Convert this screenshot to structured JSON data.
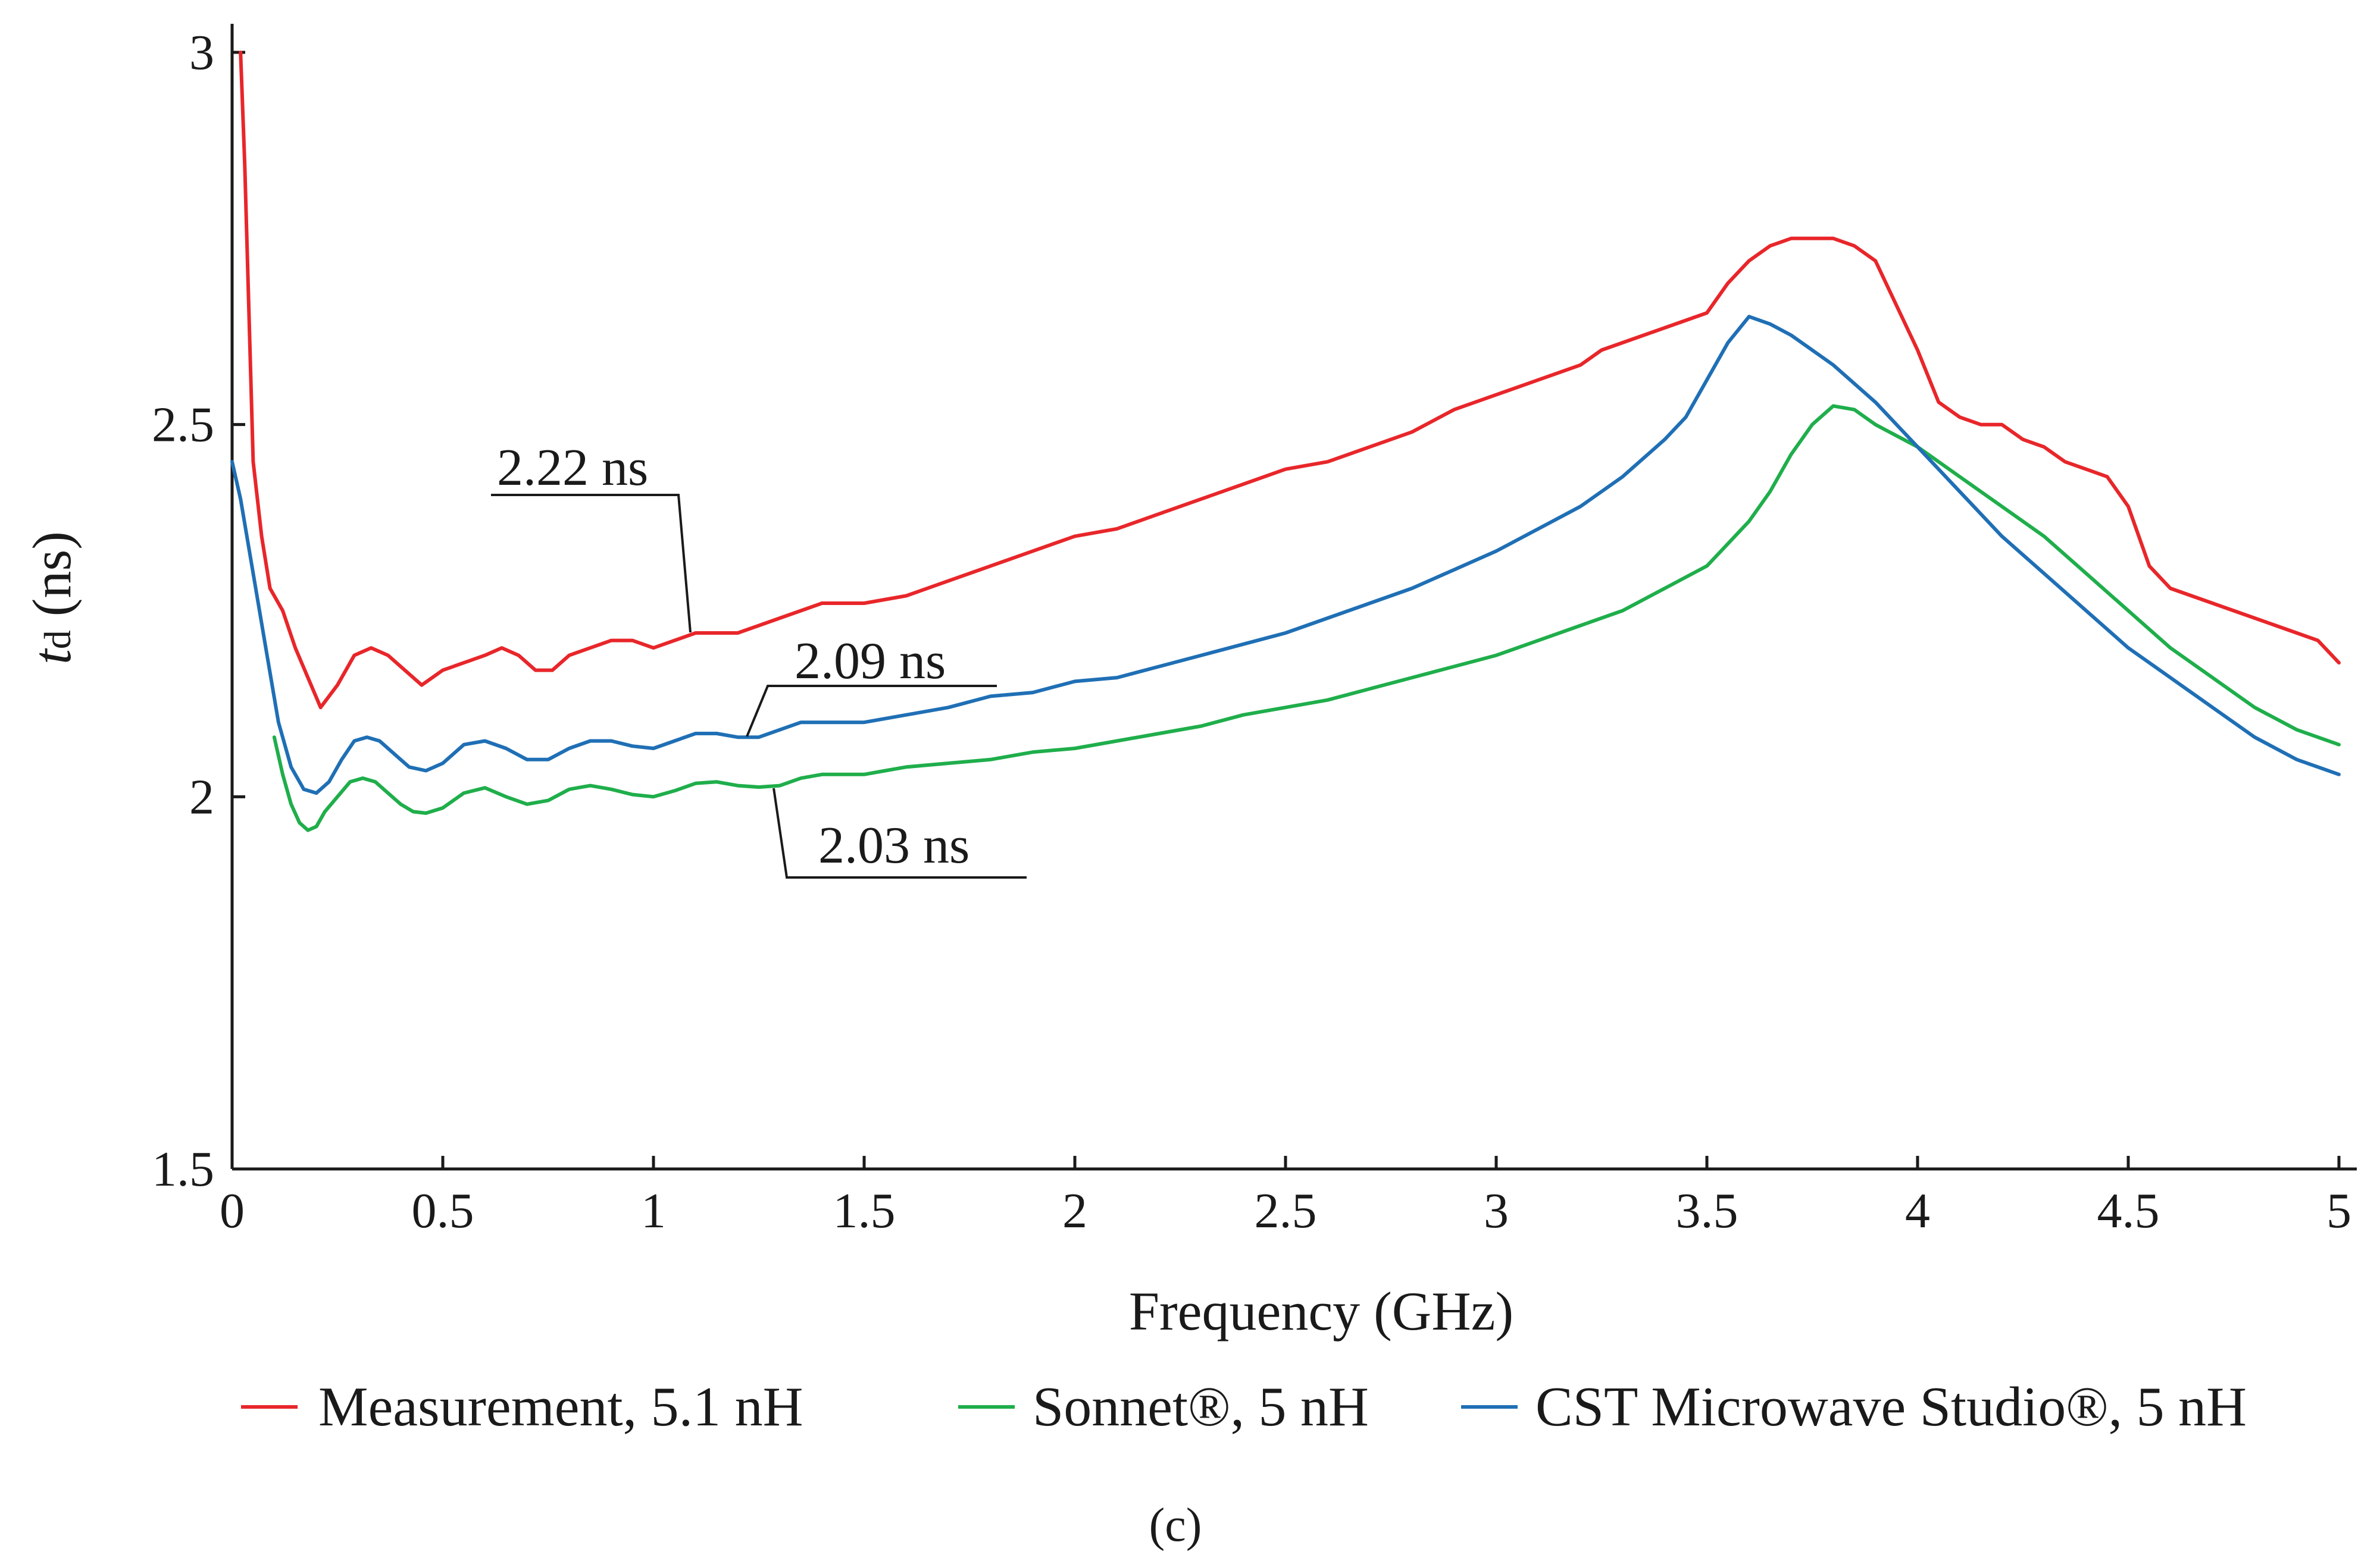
{
  "chart_data": {
    "type": "line",
    "xlabel": "Frequency  (GHz)",
    "ylabel_main": "t",
    "ylabel_sub": "d",
    "ylabel_unit": " (ns)",
    "xlim": [
      0,
      5
    ],
    "ylim": [
      1.5,
      3
    ],
    "xticks": [
      0,
      0.5,
      1,
      1.5,
      2,
      2.5,
      3,
      3.5,
      4,
      4.5,
      5
    ],
    "xtick_labels": [
      "0",
      "0.5",
      "1",
      "1.5",
      "2",
      "2.5",
      "3",
      "3.5",
      "4",
      "4.5",
      "5"
    ],
    "yticks": [
      1.5,
      2,
      2.5,
      3
    ],
    "ytick_labels": [
      "1.5",
      "2",
      "2.5",
      "3"
    ],
    "grid": false,
    "legend_position": "bottom",
    "caption": "(c)",
    "series": [
      {
        "name": "Measurement, 5.1 nH",
        "color": "#e8262a",
        "x": [
          0.02,
          0.03,
          0.05,
          0.07,
          0.09,
          0.12,
          0.15,
          0.18,
          0.21,
          0.25,
          0.29,
          0.33,
          0.37,
          0.41,
          0.45,
          0.5,
          0.55,
          0.6,
          0.64,
          0.68,
          0.72,
          0.76,
          0.8,
          0.85,
          0.9,
          0.95,
          1.0,
          1.05,
          1.1,
          1.2,
          1.3,
          1.4,
          1.5,
          1.6,
          1.7,
          1.8,
          1.9,
          2.0,
          2.1,
          2.2,
          2.3,
          2.4,
          2.5,
          2.6,
          2.7,
          2.8,
          2.9,
          3.0,
          3.1,
          3.2,
          3.25,
          3.3,
          3.35,
          3.4,
          3.45,
          3.5,
          3.55,
          3.6,
          3.65,
          3.7,
          3.75,
          3.8,
          3.85,
          3.9,
          3.95,
          4.0,
          4.05,
          4.1,
          4.15,
          4.2,
          4.25,
          4.3,
          4.35,
          4.4,
          4.45,
          4.5,
          4.55,
          4.6,
          4.65,
          4.7,
          4.75,
          4.8,
          4.85,
          4.9,
          4.95,
          5.0
        ],
        "y": [
          3.0,
          2.85,
          2.45,
          2.35,
          2.28,
          2.25,
          2.2,
          2.16,
          2.12,
          2.15,
          2.19,
          2.2,
          2.19,
          2.17,
          2.15,
          2.17,
          2.18,
          2.19,
          2.2,
          2.19,
          2.17,
          2.17,
          2.19,
          2.2,
          2.21,
          2.21,
          2.2,
          2.21,
          2.22,
          2.22,
          2.24,
          2.26,
          2.26,
          2.27,
          2.29,
          2.31,
          2.33,
          2.35,
          2.36,
          2.38,
          2.4,
          2.42,
          2.44,
          2.45,
          2.47,
          2.49,
          2.52,
          2.54,
          2.56,
          2.58,
          2.6,
          2.61,
          2.62,
          2.63,
          2.64,
          2.65,
          2.69,
          2.72,
          2.74,
          2.75,
          2.75,
          2.75,
          2.74,
          2.72,
          2.66,
          2.6,
          2.53,
          2.51,
          2.5,
          2.5,
          2.48,
          2.47,
          2.45,
          2.44,
          2.43,
          2.39,
          2.31,
          2.28,
          2.27,
          2.26,
          2.25,
          2.24,
          2.23,
          2.22,
          2.21,
          2.18
        ]
      },
      {
        "name": "Sonnet®, 5 nH",
        "color": "#1fae4b",
        "x": [
          0.1,
          0.12,
          0.14,
          0.16,
          0.18,
          0.2,
          0.22,
          0.25,
          0.28,
          0.31,
          0.34,
          0.37,
          0.4,
          0.43,
          0.46,
          0.5,
          0.55,
          0.6,
          0.65,
          0.7,
          0.75,
          0.8,
          0.85,
          0.9,
          0.95,
          1.0,
          1.05,
          1.1,
          1.15,
          1.2,
          1.25,
          1.3,
          1.35,
          1.4,
          1.45,
          1.5,
          1.55,
          1.6,
          1.7,
          1.8,
          1.9,
          2.0,
          2.1,
          2.2,
          2.3,
          2.4,
          2.5,
          2.6,
          2.7,
          2.8,
          2.9,
          3.0,
          3.1,
          3.2,
          3.3,
          3.4,
          3.5,
          3.55,
          3.6,
          3.65,
          3.7,
          3.75,
          3.8,
          3.85,
          3.9,
          4.0,
          4.1,
          4.2,
          4.3,
          4.4,
          4.5,
          4.6,
          4.7,
          4.8,
          4.9,
          5.0
        ],
        "y": [
          2.08,
          2.03,
          1.99,
          1.965,
          1.955,
          1.96,
          1.98,
          2.0,
          2.02,
          2.025,
          2.02,
          2.005,
          1.99,
          1.98,
          1.978,
          1.985,
          2.005,
          2.012,
          2.0,
          1.99,
          1.995,
          2.01,
          2.015,
          2.01,
          2.003,
          2.0,
          2.008,
          2.018,
          2.02,
          2.015,
          2.013,
          2.015,
          2.025,
          2.03,
          2.03,
          2.03,
          2.035,
          2.04,
          2.045,
          2.05,
          2.06,
          2.065,
          2.075,
          2.085,
          2.095,
          2.11,
          2.12,
          2.13,
          2.145,
          2.16,
          2.175,
          2.19,
          2.21,
          2.23,
          2.25,
          2.28,
          2.31,
          2.34,
          2.37,
          2.41,
          2.46,
          2.5,
          2.525,
          2.52,
          2.5,
          2.47,
          2.43,
          2.39,
          2.35,
          2.3,
          2.25,
          2.2,
          2.16,
          2.12,
          2.09,
          2.07
        ]
      },
      {
        "name": "CST Microwave Studio®, 5 nH",
        "color": "#1f6fb5",
        "x": [
          0.0,
          0.02,
          0.05,
          0.08,
          0.11,
          0.14,
          0.17,
          0.2,
          0.23,
          0.26,
          0.29,
          0.32,
          0.35,
          0.38,
          0.42,
          0.46,
          0.5,
          0.55,
          0.6,
          0.65,
          0.7,
          0.75,
          0.8,
          0.85,
          0.9,
          0.95,
          1.0,
          1.05,
          1.1,
          1.15,
          1.2,
          1.25,
          1.3,
          1.35,
          1.4,
          1.45,
          1.5,
          1.55,
          1.6,
          1.7,
          1.8,
          1.9,
          2.0,
          2.1,
          2.2,
          2.3,
          2.4,
          2.5,
          2.6,
          2.7,
          2.8,
          2.9,
          3.0,
          3.1,
          3.2,
          3.3,
          3.4,
          3.45,
          3.5,
          3.55,
          3.6,
          3.65,
          3.7,
          3.75,
          3.8,
          3.9,
          4.0,
          4.1,
          4.2,
          4.3,
          4.4,
          4.5,
          4.6,
          4.7,
          4.8,
          4.9,
          5.0
        ],
        "y": [
          2.45,
          2.4,
          2.3,
          2.2,
          2.1,
          2.04,
          2.01,
          2.005,
          2.02,
          2.05,
          2.075,
          2.08,
          2.075,
          2.06,
          2.04,
          2.035,
          2.045,
          2.07,
          2.075,
          2.065,
          2.05,
          2.05,
          2.065,
          2.075,
          2.075,
          2.068,
          2.065,
          2.075,
          2.085,
          2.085,
          2.08,
          2.08,
          2.09,
          2.1,
          2.1,
          2.1,
          2.1,
          2.105,
          2.11,
          2.12,
          2.135,
          2.14,
          2.155,
          2.16,
          2.175,
          2.19,
          2.205,
          2.22,
          2.24,
          2.26,
          2.28,
          2.305,
          2.33,
          2.36,
          2.39,
          2.43,
          2.48,
          2.51,
          2.56,
          2.61,
          2.645,
          2.635,
          2.62,
          2.6,
          2.58,
          2.53,
          2.47,
          2.41,
          2.35,
          2.3,
          2.25,
          2.2,
          2.16,
          2.12,
          2.08,
          2.05,
          2.03
        ]
      }
    ],
    "annotations": [
      {
        "text": "2.22 ns",
        "x": 1.1,
        "y": 2.22
      },
      {
        "text": "2.09 ns",
        "x": 1.22,
        "y": 2.09
      },
      {
        "text": "2.03 ns",
        "x": 1.25,
        "y": 2.03
      }
    ]
  }
}
